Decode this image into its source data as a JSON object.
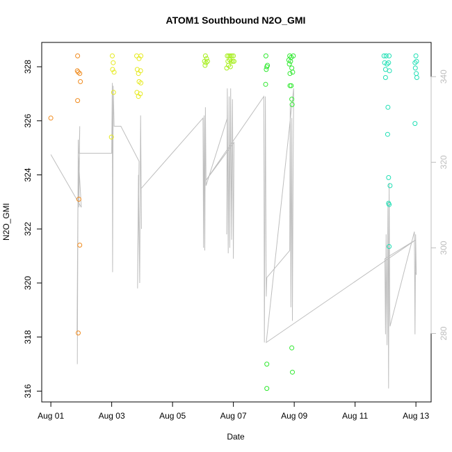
{
  "chart_data": {
    "type": "scatter",
    "title": "ATOM1 Southbound N2O_GMI",
    "xlabel": "Date",
    "ylabel": "N2O_GMI",
    "x_ticks": [
      "Aug 01",
      "Aug 03",
      "Aug 05",
      "Aug 07",
      "Aug 09",
      "Aug 11",
      "Aug 13"
    ],
    "x_tick_days": [
      0,
      2,
      4,
      6,
      8,
      10,
      12
    ],
    "xlim_days": [
      -0.3,
      12.5
    ],
    "ylim": [
      315.6,
      328.9
    ],
    "y_ticks": [
      316,
      318,
      320,
      322,
      324,
      326,
      328
    ],
    "y2_ticks": [
      280,
      300,
      320,
      340
    ],
    "y2lim": [
      264,
      348
    ],
    "grid": false,
    "legend": "none",
    "colors": {
      "axis": "#000000",
      "secondary_axis": "#bdbdbd",
      "line": "#bebebe",
      "orange": "#f08a1c",
      "yellow": "#e6ea1e",
      "lime": "#a6ee1c",
      "green": "#2ee82e",
      "cyan": "#1edfb4"
    },
    "points": [
      {
        "x": 0.0,
        "y": 326.1,
        "c": "orange"
      },
      {
        "x": 0.88,
        "y": 328.4,
        "c": "orange"
      },
      {
        "x": 0.87,
        "y": 327.85,
        "c": "orange"
      },
      {
        "x": 0.9,
        "y": 327.8,
        "c": "orange"
      },
      {
        "x": 0.95,
        "y": 327.75,
        "c": "orange"
      },
      {
        "x": 0.97,
        "y": 327.45,
        "c": "orange"
      },
      {
        "x": 0.88,
        "y": 326.75,
        "c": "orange"
      },
      {
        "x": 0.92,
        "y": 323.1,
        "c": "orange"
      },
      {
        "x": 0.95,
        "y": 321.4,
        "c": "orange"
      },
      {
        "x": 0.9,
        "y": 318.15,
        "c": "orange"
      },
      {
        "x": 2.02,
        "y": 328.4,
        "c": "yellow"
      },
      {
        "x": 2.05,
        "y": 328.15,
        "c": "yellow"
      },
      {
        "x": 2.03,
        "y": 327.9,
        "c": "yellow"
      },
      {
        "x": 2.08,
        "y": 327.8,
        "c": "yellow"
      },
      {
        "x": 2.06,
        "y": 327.05,
        "c": "yellow"
      },
      {
        "x": 1.99,
        "y": 325.4,
        "c": "yellow"
      },
      {
        "x": 2.82,
        "y": 328.4,
        "c": "yellow"
      },
      {
        "x": 2.9,
        "y": 328.3,
        "c": "yellow"
      },
      {
        "x": 2.96,
        "y": 328.4,
        "c": "yellow"
      },
      {
        "x": 2.84,
        "y": 327.9,
        "c": "yellow"
      },
      {
        "x": 2.88,
        "y": 327.75,
        "c": "yellow"
      },
      {
        "x": 2.95,
        "y": 327.85,
        "c": "yellow"
      },
      {
        "x": 2.9,
        "y": 327.45,
        "c": "yellow"
      },
      {
        "x": 2.96,
        "y": 327.4,
        "c": "yellow"
      },
      {
        "x": 2.83,
        "y": 327.05,
        "c": "yellow"
      },
      {
        "x": 2.88,
        "y": 326.9,
        "c": "yellow"
      },
      {
        "x": 2.94,
        "y": 327.0,
        "c": "yellow"
      },
      {
        "x": 5.08,
        "y": 328.4,
        "c": "lime"
      },
      {
        "x": 5.12,
        "y": 328.3,
        "c": "lime"
      },
      {
        "x": 5.05,
        "y": 328.2,
        "c": "lime"
      },
      {
        "x": 5.1,
        "y": 328.15,
        "c": "lime"
      },
      {
        "x": 5.15,
        "y": 328.2,
        "c": "lime"
      },
      {
        "x": 5.07,
        "y": 328.05,
        "c": "lime"
      },
      {
        "x": 5.8,
        "y": 328.4,
        "c": "lime"
      },
      {
        "x": 5.85,
        "y": 328.4,
        "c": "lime"
      },
      {
        "x": 5.9,
        "y": 328.4,
        "c": "lime"
      },
      {
        "x": 5.95,
        "y": 328.4,
        "c": "lime"
      },
      {
        "x": 6.0,
        "y": 328.4,
        "c": "lime"
      },
      {
        "x": 5.82,
        "y": 328.2,
        "c": "lime"
      },
      {
        "x": 5.88,
        "y": 328.25,
        "c": "lime"
      },
      {
        "x": 5.93,
        "y": 328.2,
        "c": "lime"
      },
      {
        "x": 5.98,
        "y": 328.2,
        "c": "lime"
      },
      {
        "x": 6.02,
        "y": 328.2,
        "c": "lime"
      },
      {
        "x": 5.84,
        "y": 328.05,
        "c": "lime"
      },
      {
        "x": 5.9,
        "y": 328.0,
        "c": "lime"
      },
      {
        "x": 5.78,
        "y": 327.95,
        "c": "lime"
      },
      {
        "x": 7.07,
        "y": 328.4,
        "c": "green"
      },
      {
        "x": 7.1,
        "y": 328.0,
        "c": "green"
      },
      {
        "x": 7.12,
        "y": 328.05,
        "c": "green"
      },
      {
        "x": 7.08,
        "y": 327.9,
        "c": "green"
      },
      {
        "x": 7.06,
        "y": 327.35,
        "c": "green"
      },
      {
        "x": 7.85,
        "y": 328.4,
        "c": "green"
      },
      {
        "x": 7.9,
        "y": 328.35,
        "c": "green"
      },
      {
        "x": 7.97,
        "y": 328.4,
        "c": "green"
      },
      {
        "x": 7.82,
        "y": 328.25,
        "c": "green"
      },
      {
        "x": 7.88,
        "y": 328.2,
        "c": "green"
      },
      {
        "x": 7.84,
        "y": 328.1,
        "c": "green"
      },
      {
        "x": 7.92,
        "y": 327.95,
        "c": "green"
      },
      {
        "x": 7.86,
        "y": 327.75,
        "c": "green"
      },
      {
        "x": 7.95,
        "y": 327.8,
        "c": "green"
      },
      {
        "x": 7.86,
        "y": 327.3,
        "c": "green"
      },
      {
        "x": 7.9,
        "y": 327.3,
        "c": "green"
      },
      {
        "x": 7.92,
        "y": 326.8,
        "c": "green"
      },
      {
        "x": 7.93,
        "y": 326.6,
        "c": "green"
      },
      {
        "x": 7.1,
        "y": 317.0,
        "c": "green"
      },
      {
        "x": 7.1,
        "y": 316.1,
        "c": "green"
      },
      {
        "x": 7.92,
        "y": 317.6,
        "c": "green"
      },
      {
        "x": 7.94,
        "y": 316.7,
        "c": "green"
      },
      {
        "x": 10.95,
        "y": 328.4,
        "c": "cyan"
      },
      {
        "x": 11.02,
        "y": 328.4,
        "c": "cyan"
      },
      {
        "x": 11.12,
        "y": 328.4,
        "c": "cyan"
      },
      {
        "x": 10.97,
        "y": 328.15,
        "c": "cyan"
      },
      {
        "x": 11.05,
        "y": 328.1,
        "c": "cyan"
      },
      {
        "x": 11.1,
        "y": 328.15,
        "c": "cyan"
      },
      {
        "x": 11.0,
        "y": 327.9,
        "c": "cyan"
      },
      {
        "x": 11.13,
        "y": 327.85,
        "c": "cyan"
      },
      {
        "x": 11.0,
        "y": 327.6,
        "c": "cyan"
      },
      {
        "x": 12.0,
        "y": 328.4,
        "c": "cyan"
      },
      {
        "x": 11.97,
        "y": 328.15,
        "c": "cyan"
      },
      {
        "x": 12.02,
        "y": 328.2,
        "c": "cyan"
      },
      {
        "x": 11.98,
        "y": 327.95,
        "c": "cyan"
      },
      {
        "x": 12.01,
        "y": 327.75,
        "c": "cyan"
      },
      {
        "x": 12.03,
        "y": 327.6,
        "c": "cyan"
      },
      {
        "x": 11.97,
        "y": 325.9,
        "c": "cyan"
      },
      {
        "x": 11.08,
        "y": 326.5,
        "c": "cyan"
      },
      {
        "x": 11.07,
        "y": 325.5,
        "c": "cyan"
      },
      {
        "x": 11.1,
        "y": 323.9,
        "c": "cyan"
      },
      {
        "x": 11.15,
        "y": 323.6,
        "c": "cyan"
      },
      {
        "x": 11.1,
        "y": 322.95,
        "c": "cyan"
      },
      {
        "x": 11.12,
        "y": 322.9,
        "c": "cyan"
      },
      {
        "x": 11.12,
        "y": 321.35,
        "c": "cyan"
      }
    ],
    "altitude_trace": [
      [
        0.0,
        324.75
      ],
      [
        1.0,
        322.8
      ],
      [
        0.9,
        324.8
      ],
      [
        0.86,
        318.2
      ],
      [
        0.88,
        320.2
      ],
      [
        0.87,
        317.0
      ],
      [
        0.9,
        325.3
      ],
      [
        0.92,
        322.8
      ],
      [
        0.95,
        325.8
      ],
      [
        0.93,
        324.8
      ],
      [
        2.0,
        324.8
      ],
      [
        2.02,
        327.4
      ],
      [
        2.03,
        320.4
      ],
      [
        2.05,
        327.3
      ],
      [
        2.08,
        325.8
      ],
      [
        2.3,
        325.8
      ],
      [
        2.9,
        324.5
      ],
      [
        2.85,
        319.8
      ],
      [
        2.88,
        324.0
      ],
      [
        2.92,
        320.0
      ],
      [
        2.95,
        326.2
      ],
      [
        2.98,
        322.0
      ],
      [
        2.97,
        323.5
      ],
      [
        5.0,
        326.1
      ],
      [
        5.02,
        321.3
      ],
      [
        5.04,
        326.2
      ],
      [
        5.06,
        321.2
      ],
      [
        5.08,
        326.5
      ],
      [
        5.1,
        323.6
      ],
      [
        5.8,
        326.1
      ],
      [
        5.78,
        321.8
      ],
      [
        5.8,
        327.2
      ],
      [
        5.83,
        321.1
      ],
      [
        5.86,
        326.9
      ],
      [
        5.88,
        321.3
      ],
      [
        5.91,
        327.2
      ],
      [
        5.94,
        321.6
      ],
      [
        5.97,
        326.8
      ],
      [
        6.0,
        320.9
      ],
      [
        6.02,
        325.2
      ],
      [
        5.1,
        323.8
      ],
      [
        7.0,
        326.9
      ],
      [
        7.02,
        317.8
      ],
      [
        7.05,
        326.9
      ],
      [
        7.08,
        319.5
      ],
      [
        7.1,
        320.2
      ],
      [
        7.85,
        321.2
      ],
      [
        7.87,
        326.6
      ],
      [
        7.89,
        319.1
      ],
      [
        7.92,
        326.1
      ],
      [
        7.94,
        318.6
      ],
      [
        7.96,
        323.5
      ],
      [
        7.98,
        327.2
      ],
      [
        7.08,
        317.8
      ],
      [
        12.0,
        321.6
      ],
      [
        10.98,
        320.9
      ],
      [
        11.0,
        318.1
      ],
      [
        11.02,
        321.8
      ],
      [
        11.05,
        317.7
      ],
      [
        11.08,
        323.0
      ],
      [
        11.1,
        316.1
      ],
      [
        11.12,
        323.7
      ],
      [
        11.14,
        319.0
      ],
      [
        11.15,
        318.4
      ],
      [
        11.95,
        321.9
      ],
      [
        11.97,
        318.1
      ],
      [
        11.99,
        321.8
      ],
      [
        12.01,
        320.3
      ],
      [
        12.0,
        320.4
      ]
    ]
  }
}
